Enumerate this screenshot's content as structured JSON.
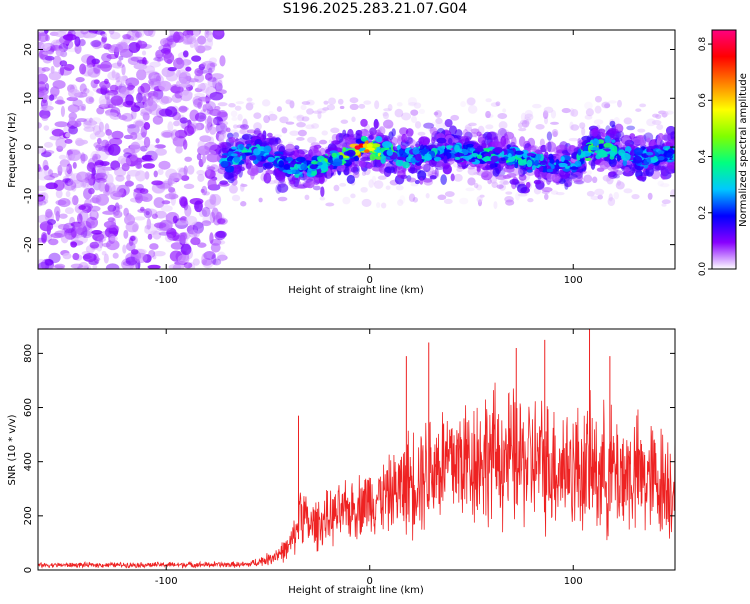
{
  "title": "S196.2025.283.21.07.G04",
  "chart_data": [
    {
      "id": "spectrogram",
      "type": "heatmap",
      "xlabel": "Height of straight line (km)",
      "ylabel": "Frequency (Hz)",
      "xlim": [
        -163,
        150
      ],
      "ylim": [
        -25,
        24
      ],
      "xticks": [
        -100,
        0,
        100
      ],
      "xtick_labels": [
        "-100",
        "0",
        "100"
      ],
      "yticks": [
        -20,
        -10,
        0,
        10,
        20
      ],
      "ytick_labels": [
        "-20",
        "-10",
        "0",
        "10",
        "20"
      ],
      "colorbar": {
        "label": "Normalized spectral amplitude",
        "range": [
          0.0,
          0.85
        ],
        "ticks": [
          0.0,
          0.2,
          0.4,
          0.6,
          0.8
        ],
        "tick_labels": [
          "0.0",
          "0.2",
          "0.4",
          "0.6",
          "0.8"
        ],
        "colors": [
          "#ffffff",
          "#8800ff",
          "#0000ff",
          "#00c8ff",
          "#00ff80",
          "#80ff00",
          "#ffff00",
          "#ff8000",
          "#ff0000",
          "#ff0080"
        ]
      },
      "noise_region_x": [
        -163,
        -72
      ],
      "signal_trace": {
        "x": [
          -72,
          -60,
          -50,
          -40,
          -30,
          -20,
          -10,
          -5,
          0,
          10,
          20,
          30,
          40,
          50,
          60,
          70,
          80,
          90,
          100,
          110,
          120,
          130,
          140,
          150
        ],
        "freq": [
          -3,
          -1,
          -2,
          -4,
          -5,
          -3,
          -2,
          0,
          0,
          -1,
          -2,
          -1,
          -1,
          -1,
          -2,
          -2,
          -3,
          -4,
          -3,
          0,
          -1,
          -2,
          -2,
          -1
        ],
        "peak_amplitude": [
          0.3,
          0.35,
          0.3,
          0.3,
          0.35,
          0.45,
          0.55,
          0.8,
          0.7,
          0.4,
          0.3,
          0.35,
          0.3,
          0.35,
          0.4,
          0.4,
          0.35,
          0.3,
          0.3,
          0.45,
          0.35,
          0.3,
          0.3,
          0.3
        ]
      }
    },
    {
      "id": "snr",
      "type": "line",
      "xlabel": "Height of straight line (km)",
      "ylabel": "SNR (10 * v/v)",
      "xlim": [
        -163,
        150
      ],
      "ylim": [
        0,
        890
      ],
      "xticks": [
        -100,
        0,
        100
      ],
      "xtick_labels": [
        "-100",
        "0",
        "100"
      ],
      "yticks": [
        0,
        200,
        400,
        600,
        800
      ],
      "ytick_labels": [
        "0",
        "200",
        "400",
        "600",
        "800"
      ],
      "color": "#ee2222",
      "envelope": {
        "x": [
          -163,
          -60,
          -50,
          -40,
          -36,
          -34,
          -30,
          -20,
          -10,
          0,
          10,
          15,
          20,
          30,
          40,
          60,
          80,
          100,
          110,
          120,
          130,
          140,
          150
        ],
        "mean": [
          18,
          20,
          40,
          80,
          140,
          240,
          160,
          190,
          220,
          260,
          280,
          300,
          330,
          380,
          400,
          420,
          400,
          380,
          370,
          360,
          350,
          330,
          320
        ],
        "spread": [
          10,
          12,
          25,
          50,
          80,
          130,
          100,
          110,
          120,
          140,
          150,
          180,
          220,
          250,
          260,
          280,
          270,
          260,
          270,
          260,
          250,
          240,
          230
        ]
      },
      "spikes": [
        {
          "x": -35,
          "y": 570
        },
        {
          "x": 18,
          "y": 790
        },
        {
          "x": 29,
          "y": 840
        },
        {
          "x": 72,
          "y": 820
        },
        {
          "x": 86,
          "y": 850
        },
        {
          "x": 108,
          "y": 890
        },
        {
          "x": 118,
          "y": 790
        }
      ]
    }
  ]
}
